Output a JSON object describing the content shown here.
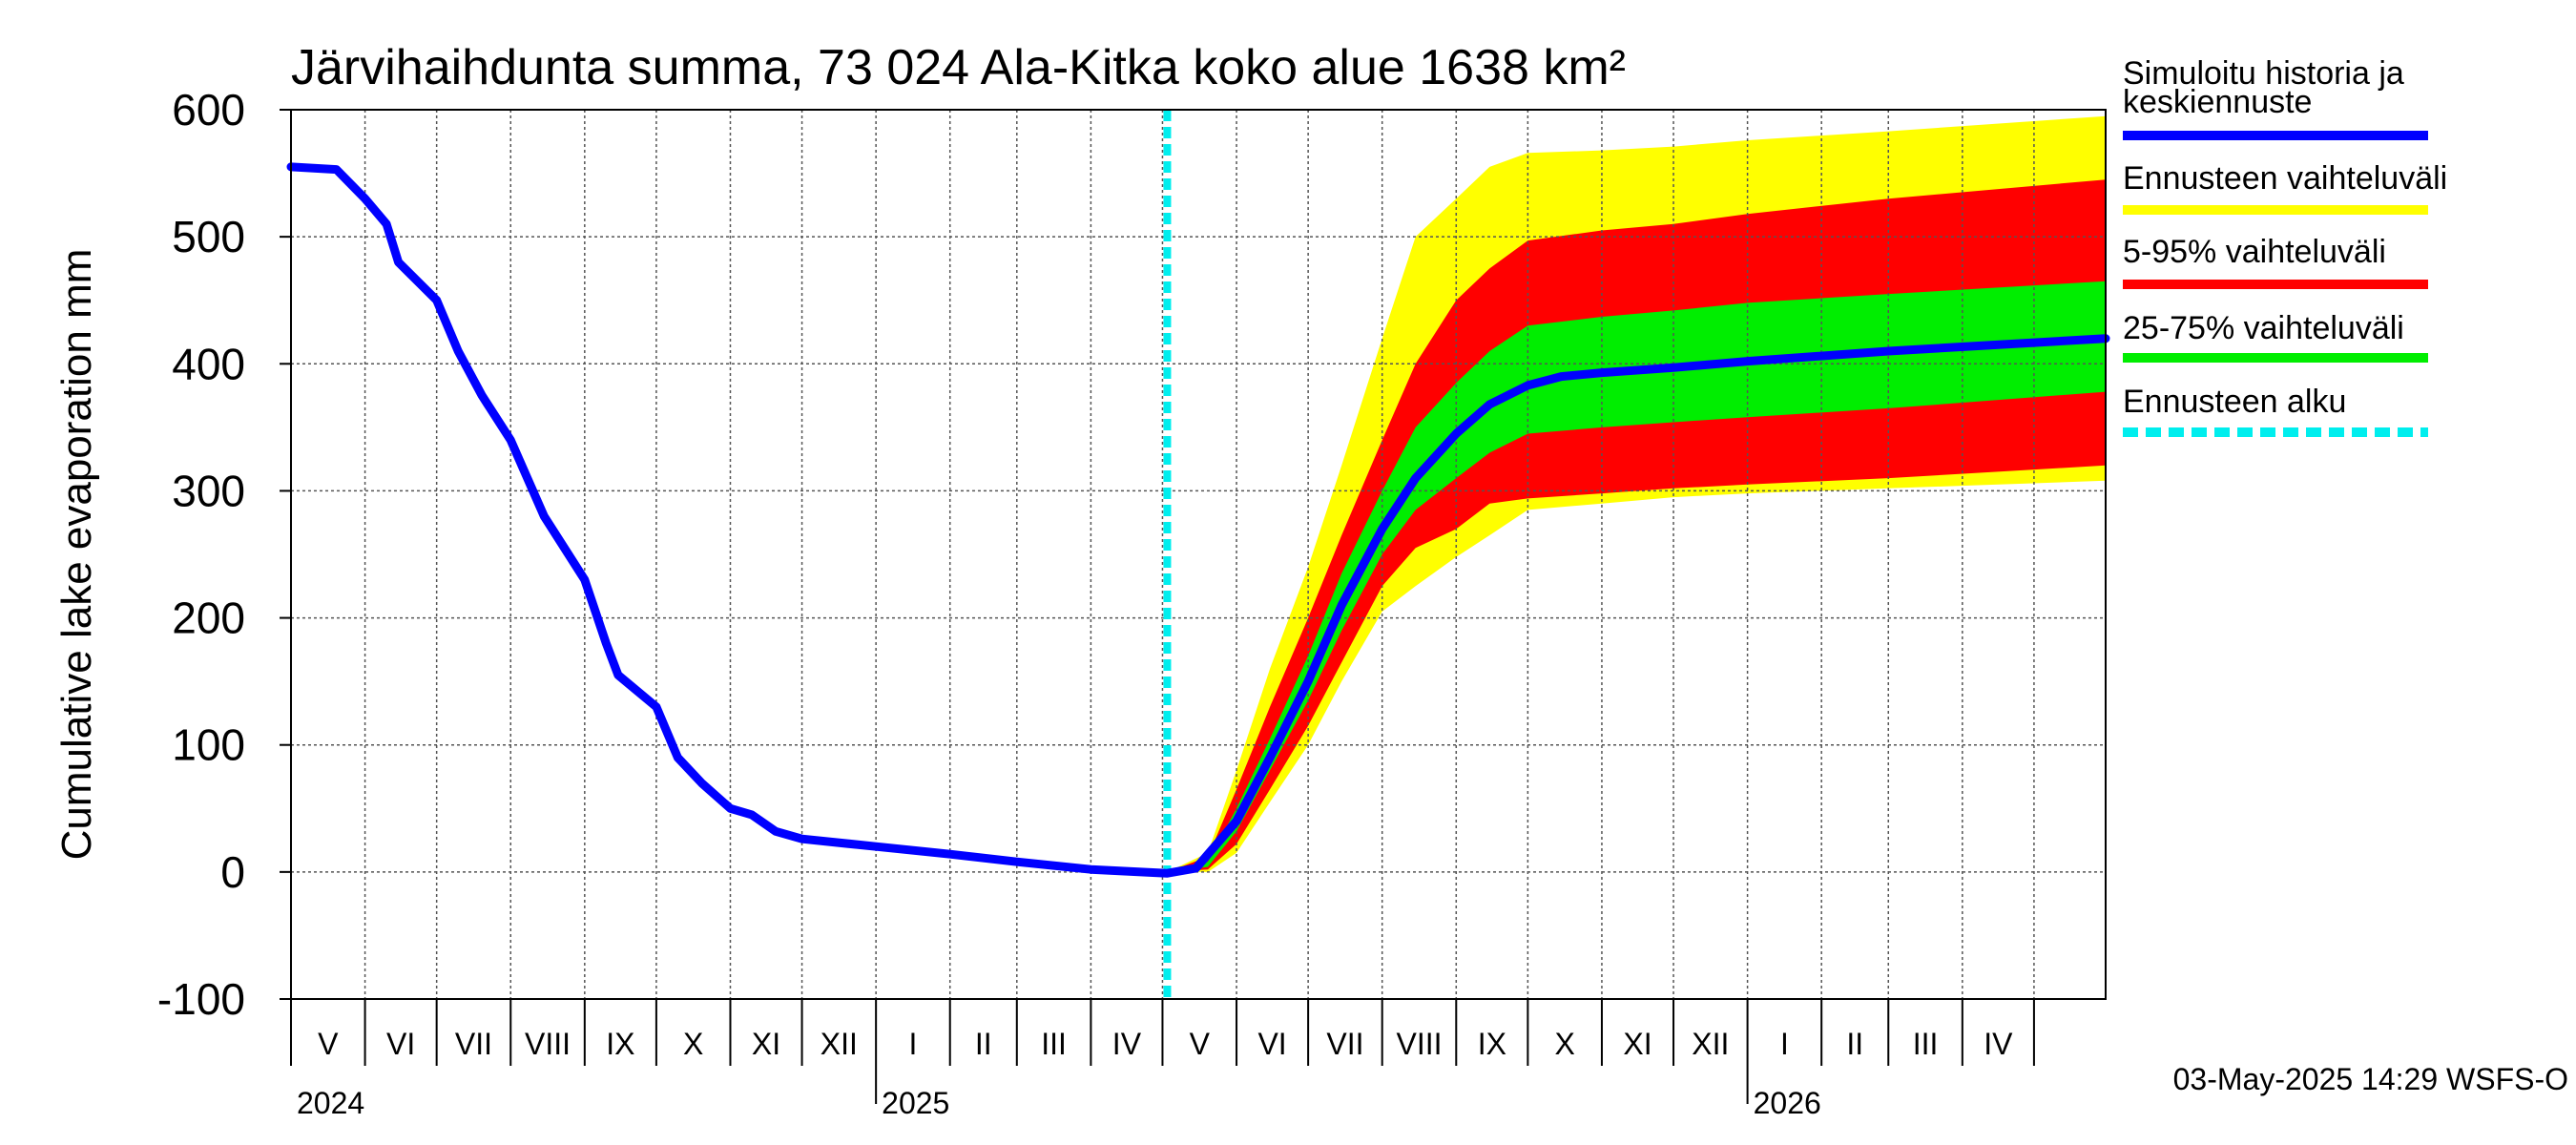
{
  "chart_data": {
    "type": "area",
    "title": "Järvihaihdunta summa, 73 024 Ala-Kitka koko alue 1638 km²",
    "ylabel": "Cumulative lake evaporation   mm",
    "ylim": [
      -100,
      600
    ],
    "yticks": [
      -100,
      0,
      100,
      200,
      300,
      400,
      500,
      600
    ],
    "ytick_labels": [
      "-100",
      "0",
      "100",
      "200",
      "300",
      "400",
      "500",
      "600"
    ],
    "grid": true,
    "legend_position": "right",
    "x_start": "2024-05-01",
    "x_end": "2026-05-31",
    "month_labels": [
      "V",
      "VI",
      "VII",
      "VIII",
      "IX",
      "X",
      "XI",
      "XII",
      "I",
      "II",
      "III",
      "IV",
      "V",
      "VI",
      "VII",
      "VIII",
      "IX",
      "X",
      "XI",
      "XII",
      "I",
      "II",
      "III",
      "IV"
    ],
    "year_labels": [
      {
        "date": "2024-05-01",
        "label": "2024"
      },
      {
        "date": "2025-01-01",
        "label": "2025"
      },
      {
        "date": "2026-01-01",
        "label": "2026"
      }
    ],
    "forecast_start": "2025-05-03",
    "series": [
      {
        "name": "Simuloitu historia ja keskiennuste",
        "color": "#0000ff",
        "points": [
          [
            "2024-05-01",
            555
          ],
          [
            "2024-05-20",
            553
          ],
          [
            "2024-06-01",
            530
          ],
          [
            "2024-06-10",
            510
          ],
          [
            "2024-06-15",
            480
          ],
          [
            "2024-07-01",
            450
          ],
          [
            "2024-07-10",
            410
          ],
          [
            "2024-07-20",
            375
          ],
          [
            "2024-08-01",
            340
          ],
          [
            "2024-08-15",
            280
          ],
          [
            "2024-09-01",
            230
          ],
          [
            "2024-09-10",
            180
          ],
          [
            "2024-09-15",
            155
          ],
          [
            "2024-10-01",
            130
          ],
          [
            "2024-10-10",
            90
          ],
          [
            "2024-10-20",
            70
          ],
          [
            "2024-11-01",
            50
          ],
          [
            "2024-11-10",
            45
          ],
          [
            "2024-11-20",
            32
          ],
          [
            "2024-12-01",
            26
          ],
          [
            "2025-01-01",
            20
          ],
          [
            "2025-02-01",
            14
          ],
          [
            "2025-03-01",
            8
          ],
          [
            "2025-04-01",
            2
          ],
          [
            "2025-05-03",
            -1
          ],
          [
            "2025-05-15",
            3
          ],
          [
            "2025-06-01",
            40
          ],
          [
            "2025-06-15",
            90
          ],
          [
            "2025-07-01",
            150
          ],
          [
            "2025-07-15",
            210
          ],
          [
            "2025-08-01",
            270
          ],
          [
            "2025-08-15",
            310
          ],
          [
            "2025-09-01",
            345
          ],
          [
            "2025-09-15",
            368
          ],
          [
            "2025-10-01",
            383
          ],
          [
            "2025-10-15",
            390
          ],
          [
            "2025-11-01",
            393
          ],
          [
            "2025-12-01",
            397
          ],
          [
            "2026-01-01",
            402
          ],
          [
            "2026-03-01",
            410
          ],
          [
            "2026-05-31",
            420
          ]
        ]
      }
    ],
    "bands": [
      {
        "name": "Ennusteen vaihteluväli",
        "color": "#ffff00",
        "lower": [
          [
            "2025-05-03",
            0
          ],
          [
            "2025-05-20",
            0
          ],
          [
            "2025-06-01",
            15
          ],
          [
            "2025-06-15",
            55
          ],
          [
            "2025-07-01",
            100
          ],
          [
            "2025-07-15",
            150
          ],
          [
            "2025-08-01",
            205
          ],
          [
            "2025-08-15",
            225
          ],
          [
            "2025-09-01",
            248
          ],
          [
            "2025-09-15",
            265
          ],
          [
            "2025-10-01",
            285
          ],
          [
            "2025-11-01",
            290
          ],
          [
            "2025-12-01",
            295
          ],
          [
            "2026-01-01",
            298
          ],
          [
            "2026-03-01",
            302
          ],
          [
            "2026-05-31",
            308
          ]
        ],
        "upper": [
          [
            "2025-05-03",
            0
          ],
          [
            "2025-05-20",
            15
          ],
          [
            "2025-06-01",
            80
          ],
          [
            "2025-06-15",
            160
          ],
          [
            "2025-07-01",
            240
          ],
          [
            "2025-07-15",
            320
          ],
          [
            "2025-08-01",
            420
          ],
          [
            "2025-08-15",
            500
          ],
          [
            "2025-09-01",
            530
          ],
          [
            "2025-09-15",
            555
          ],
          [
            "2025-10-01",
            566
          ],
          [
            "2025-11-01",
            568
          ],
          [
            "2025-12-01",
            571
          ],
          [
            "2026-01-01",
            576
          ],
          [
            "2026-03-01",
            583
          ],
          [
            "2026-05-31",
            595
          ]
        ]
      },
      {
        "name": "5-95% vaihteluväli",
        "color": "#ff0000",
        "lower": [
          [
            "2025-05-03",
            0
          ],
          [
            "2025-05-20",
            2
          ],
          [
            "2025-06-01",
            22
          ],
          [
            "2025-06-15",
            65
          ],
          [
            "2025-07-01",
            115
          ],
          [
            "2025-07-15",
            165
          ],
          [
            "2025-08-01",
            225
          ],
          [
            "2025-08-15",
            255
          ],
          [
            "2025-09-01",
            270
          ],
          [
            "2025-09-15",
            290
          ],
          [
            "2025-10-01",
            294
          ],
          [
            "2025-11-01",
            298
          ],
          [
            "2025-12-01",
            302
          ],
          [
            "2026-01-01",
            305
          ],
          [
            "2026-03-01",
            310
          ],
          [
            "2026-05-31",
            320
          ]
        ],
        "upper": [
          [
            "2025-05-03",
            0
          ],
          [
            "2025-05-20",
            12
          ],
          [
            "2025-06-01",
            65
          ],
          [
            "2025-06-15",
            130
          ],
          [
            "2025-07-01",
            200
          ],
          [
            "2025-07-15",
            265
          ],
          [
            "2025-08-01",
            340
          ],
          [
            "2025-08-15",
            400
          ],
          [
            "2025-09-01",
            450
          ],
          [
            "2025-09-15",
            475
          ],
          [
            "2025-10-01",
            497
          ],
          [
            "2025-11-01",
            505
          ],
          [
            "2025-12-01",
            510
          ],
          [
            "2026-01-01",
            518
          ],
          [
            "2026-03-01",
            530
          ],
          [
            "2026-05-31",
            545
          ]
        ]
      },
      {
        "name": "25-75% vaihteluväli",
        "color": "#00ee00",
        "lower": [
          [
            "2025-05-03",
            0
          ],
          [
            "2025-05-20",
            4
          ],
          [
            "2025-06-01",
            32
          ],
          [
            "2025-06-15",
            80
          ],
          [
            "2025-07-01",
            135
          ],
          [
            "2025-07-15",
            190
          ],
          [
            "2025-08-01",
            250
          ],
          [
            "2025-08-15",
            285
          ],
          [
            "2025-09-01",
            310
          ],
          [
            "2025-09-15",
            330
          ],
          [
            "2025-10-01",
            345
          ],
          [
            "2025-11-01",
            350
          ],
          [
            "2025-12-01",
            354
          ],
          [
            "2026-01-01",
            358
          ],
          [
            "2026-03-01",
            365
          ],
          [
            "2026-05-31",
            378
          ]
        ],
        "upper": [
          [
            "2025-05-03",
            0
          ],
          [
            "2025-05-20",
            8
          ],
          [
            "2025-06-01",
            50
          ],
          [
            "2025-06-15",
            105
          ],
          [
            "2025-07-01",
            170
          ],
          [
            "2025-07-15",
            235
          ],
          [
            "2025-08-01",
            300
          ],
          [
            "2025-08-15",
            350
          ],
          [
            "2025-09-01",
            385
          ],
          [
            "2025-09-15",
            410
          ],
          [
            "2025-10-01",
            430
          ],
          [
            "2025-11-01",
            437
          ],
          [
            "2025-12-01",
            442
          ],
          [
            "2026-01-01",
            448
          ],
          [
            "2026-03-01",
            455
          ],
          [
            "2026-05-31",
            465
          ]
        ]
      }
    ],
    "legend": [
      {
        "label": "Simuloitu historia ja keskiennuste",
        "color": "#0000ff",
        "style": "line"
      },
      {
        "label": "Ennusteen vaihteluväli",
        "color": "#ffff00",
        "style": "line"
      },
      {
        "label": "5-95% vaihteluväli",
        "color": "#ff0000",
        "style": "line"
      },
      {
        "label": "25-75% vaihteluväli",
        "color": "#00ee00",
        "style": "line"
      },
      {
        "label": "Ennusteen alku",
        "color": "#00eeee",
        "style": "dashed"
      }
    ],
    "footer": "03-May-2025 14:29 WSFS-O"
  }
}
